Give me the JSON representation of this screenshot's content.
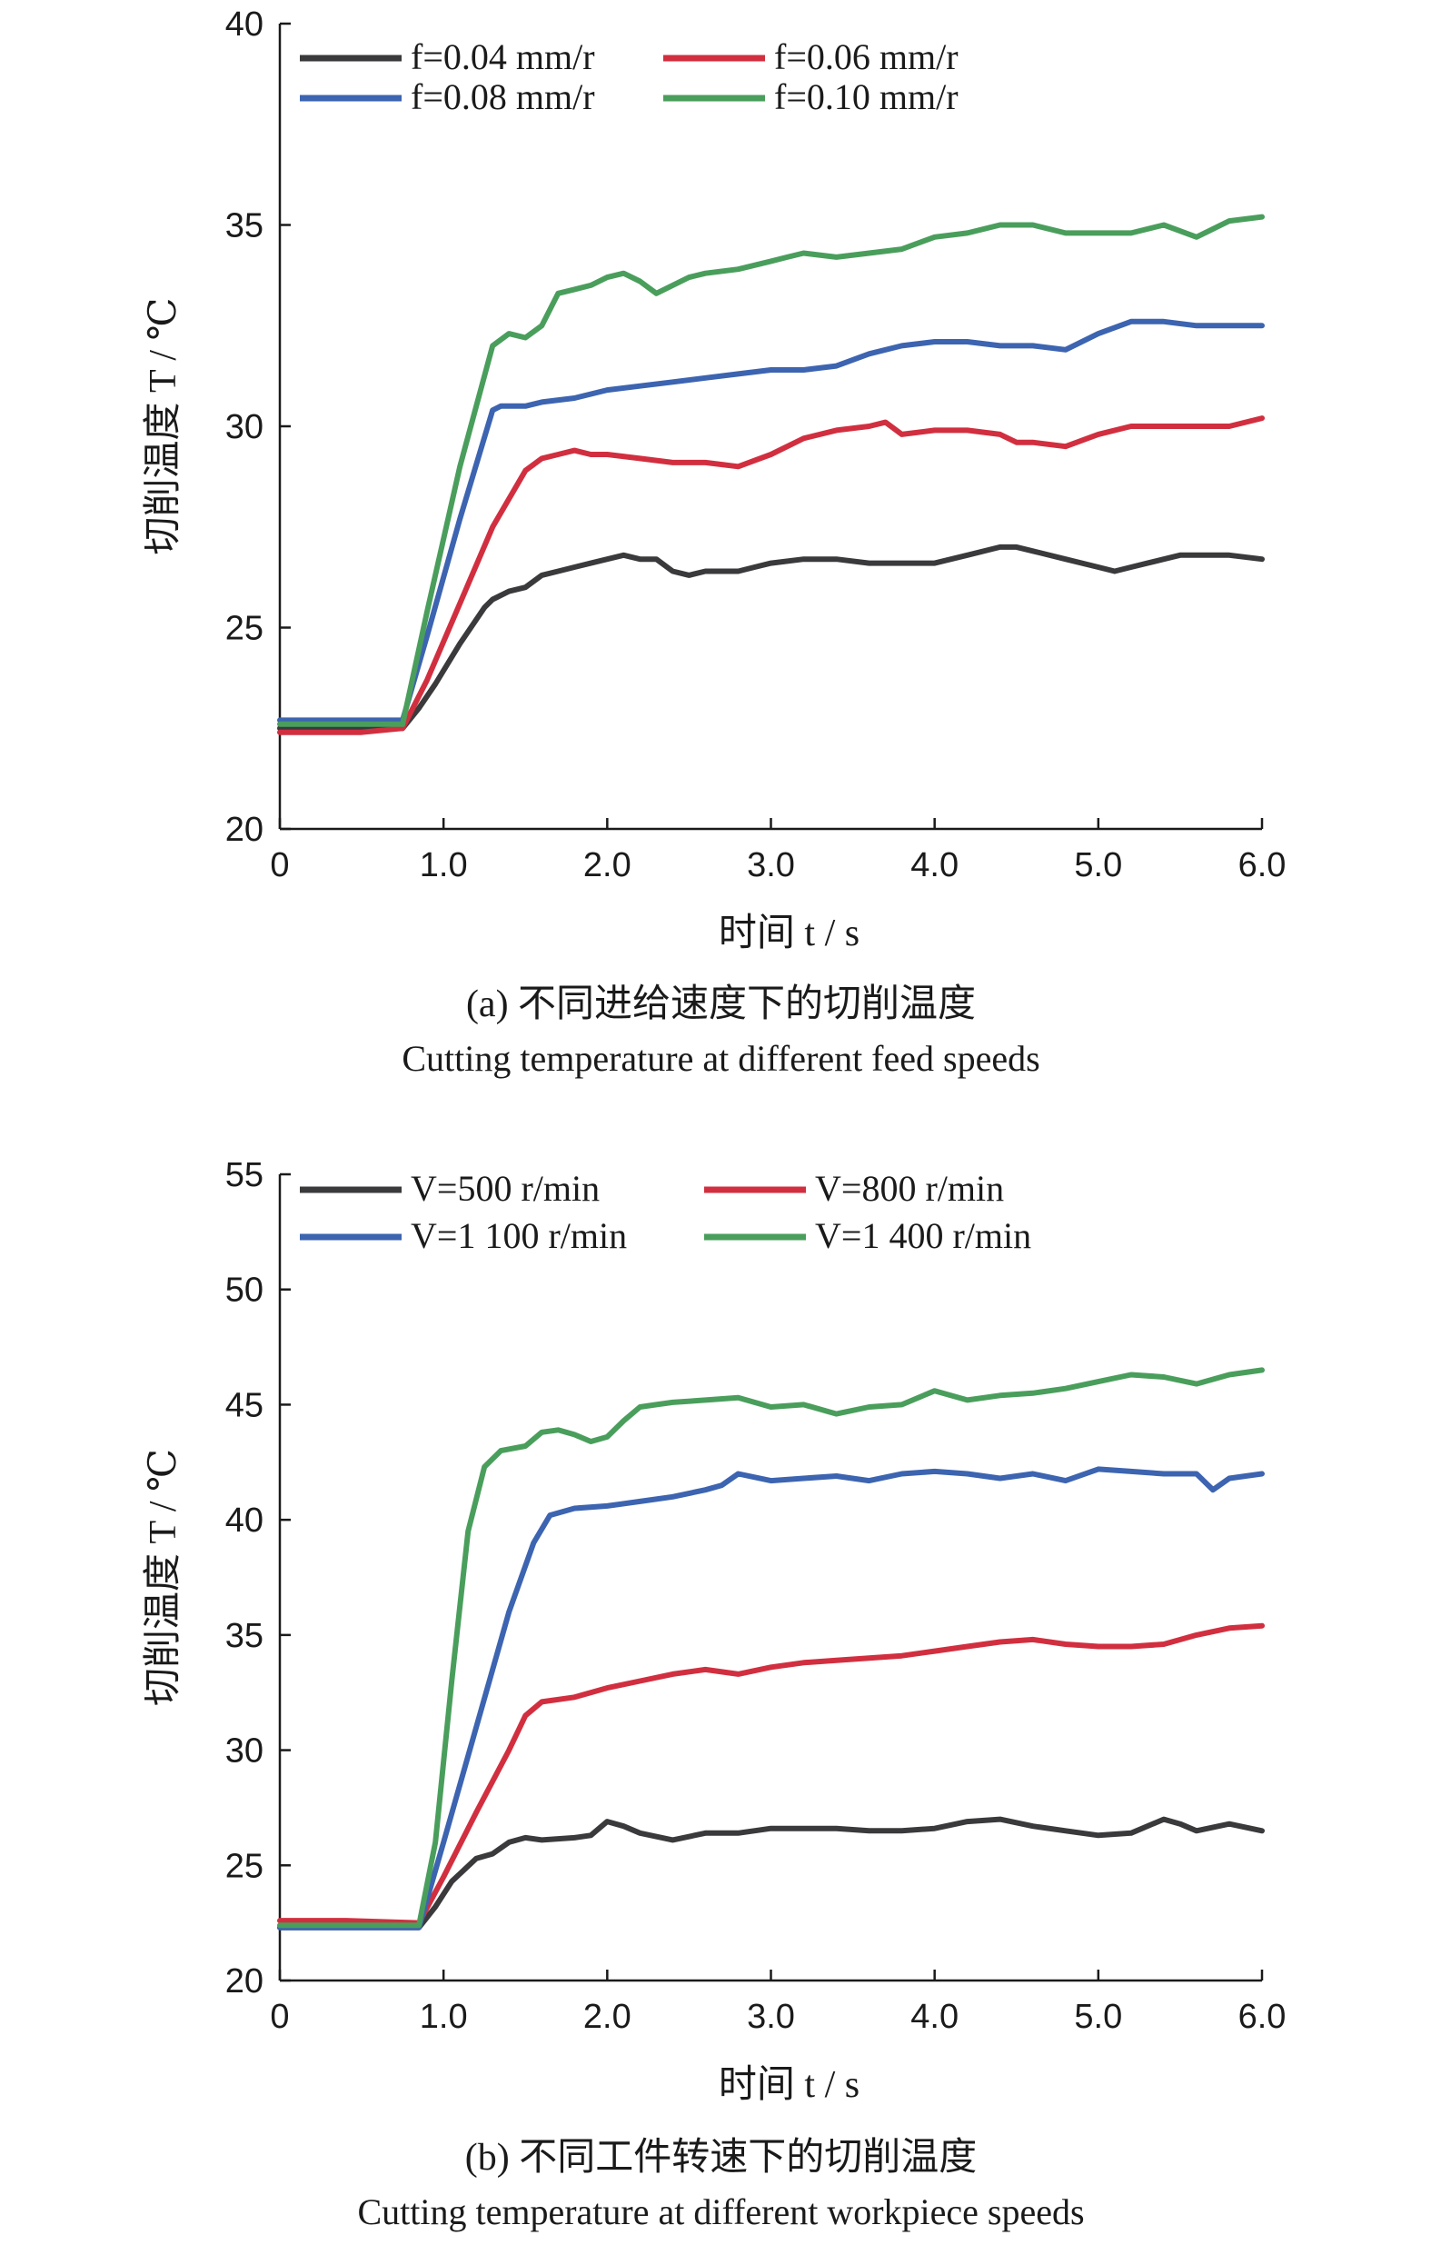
{
  "chart_data": [
    {
      "type": "line",
      "caption_cn": "(a) 不同进给速度下的切削温度",
      "caption_en": "Cutting temperature at different feed speeds",
      "xlabel": "时间 t / s",
      "ylabel": "切削温度 T / ℃",
      "xlim": [
        0,
        6.0
      ],
      "ylim": [
        20,
        40
      ],
      "xticks": [
        "0",
        "1.0",
        "2.0",
        "3.0",
        "4.0",
        "5.0",
        "6.0"
      ],
      "yticks": [
        "20",
        "25",
        "30",
        "35",
        "40"
      ],
      "legend": "top-left",
      "grid": false,
      "series": [
        {
          "name": "f=0.04 mm/r",
          "color": "#3a3a3c",
          "x": [
            0,
            0.3,
            0.5,
            0.75,
            0.85,
            0.95,
            1.1,
            1.25,
            1.3,
            1.4,
            1.5,
            1.6,
            1.7,
            1.8,
            1.9,
            2.0,
            2.1,
            2.2,
            2.3,
            2.4,
            2.5,
            2.6,
            2.7,
            2.8,
            2.9,
            3.0,
            3.2,
            3.4,
            3.6,
            3.8,
            4.0,
            4.2,
            4.4,
            4.5,
            4.6,
            4.8,
            5.0,
            5.1,
            5.2,
            5.3,
            5.4,
            5.5,
            5.6,
            5.8,
            6.0
          ],
          "y": [
            22.5,
            22.5,
            22.5,
            22.5,
            23.0,
            23.6,
            24.6,
            25.5,
            25.7,
            25.9,
            26.0,
            26.3,
            26.4,
            26.5,
            26.6,
            26.7,
            26.8,
            26.7,
            26.7,
            26.4,
            26.3,
            26.4,
            26.4,
            26.4,
            26.5,
            26.6,
            26.7,
            26.7,
            26.6,
            26.6,
            26.6,
            26.8,
            27.0,
            27.0,
            26.9,
            26.7,
            26.5,
            26.4,
            26.5,
            26.6,
            26.7,
            26.8,
            26.8,
            26.8,
            26.7
          ]
        },
        {
          "name": "f=0.06 mm/r",
          "color": "#d12f3f",
          "x": [
            0,
            0.3,
            0.5,
            0.75,
            0.9,
            1.1,
            1.3,
            1.5,
            1.6,
            1.7,
            1.8,
            1.9,
            2.0,
            2.2,
            2.4,
            2.6,
            2.8,
            3.0,
            3.2,
            3.4,
            3.6,
            3.7,
            3.8,
            4.0,
            4.2,
            4.4,
            4.5,
            4.6,
            4.8,
            5.0,
            5.2,
            5.4,
            5.6,
            5.8,
            6.0
          ],
          "y": [
            22.4,
            22.4,
            22.4,
            22.5,
            23.7,
            25.6,
            27.5,
            28.9,
            29.2,
            29.3,
            29.4,
            29.3,
            29.3,
            29.2,
            29.1,
            29.1,
            29.0,
            29.3,
            29.7,
            29.9,
            30.0,
            30.1,
            29.8,
            29.9,
            29.9,
            29.8,
            29.6,
            29.6,
            29.5,
            29.8,
            30.0,
            30.0,
            30.0,
            30.0,
            30.2
          ]
        },
        {
          "name": "f=0.08 mm/r",
          "color": "#3c64b0",
          "x": [
            0,
            0.3,
            0.5,
            0.75,
            0.9,
            1.1,
            1.3,
            1.35,
            1.5,
            1.6,
            1.8,
            2.0,
            2.2,
            2.4,
            2.6,
            2.8,
            3.0,
            3.2,
            3.4,
            3.6,
            3.8,
            4.0,
            4.2,
            4.4,
            4.6,
            4.8,
            5.0,
            5.2,
            5.4,
            5.6,
            5.8,
            6.0
          ],
          "y": [
            22.7,
            22.7,
            22.7,
            22.7,
            24.8,
            27.7,
            30.4,
            30.5,
            30.5,
            30.6,
            30.7,
            30.9,
            31.0,
            31.1,
            31.2,
            31.3,
            31.4,
            31.4,
            31.5,
            31.8,
            32.0,
            32.1,
            32.1,
            32.0,
            32.0,
            31.9,
            32.3,
            32.6,
            32.6,
            32.5,
            32.5,
            32.5
          ]
        },
        {
          "name": "f=0.10 mm/r",
          "color": "#4a9e5c",
          "x": [
            0,
            0.3,
            0.5,
            0.75,
            0.9,
            1.1,
            1.3,
            1.4,
            1.5,
            1.6,
            1.7,
            1.8,
            1.9,
            2.0,
            2.1,
            2.2,
            2.3,
            2.4,
            2.5,
            2.6,
            2.8,
            3.0,
            3.1,
            3.2,
            3.4,
            3.6,
            3.8,
            4.0,
            4.2,
            4.4,
            4.6,
            4.8,
            5.0,
            5.2,
            5.4,
            5.6,
            5.8,
            6.0
          ],
          "y": [
            22.6,
            22.6,
            22.6,
            22.6,
            25.4,
            29.0,
            32.0,
            32.3,
            32.2,
            32.5,
            33.3,
            33.4,
            33.5,
            33.7,
            33.8,
            33.6,
            33.3,
            33.5,
            33.7,
            33.8,
            33.9,
            34.1,
            34.2,
            34.3,
            34.2,
            34.3,
            34.4,
            34.7,
            34.8,
            35.0,
            35.0,
            34.8,
            34.8,
            34.8,
            35.0,
            34.7,
            35.1,
            35.2
          ]
        }
      ]
    },
    {
      "type": "line",
      "caption_cn": "(b) 不同工件转速下的切削温度",
      "caption_en": "Cutting temperature at different workpiece speeds",
      "xlabel": "时间 t / s",
      "ylabel": "切削温度 T / ℃",
      "xlim": [
        0,
        6.0
      ],
      "ylim": [
        20,
        55
      ],
      "xticks": [
        "0",
        "1.0",
        "2.0",
        "3.0",
        "4.0",
        "5.0",
        "6.0"
      ],
      "yticks": [
        "20",
        "25",
        "30",
        "35",
        "40",
        "45",
        "50",
        "55"
      ],
      "legend": "top-left",
      "grid": false,
      "series": [
        {
          "name": "V=500 r/min",
          "color": "#3a3a3c",
          "x": [
            0,
            0.4,
            0.85,
            0.95,
            1.05,
            1.2,
            1.3,
            1.4,
            1.5,
            1.6,
            1.8,
            1.9,
            2.0,
            2.1,
            2.2,
            2.4,
            2.6,
            2.8,
            3.0,
            3.2,
            3.4,
            3.6,
            3.8,
            4.0,
            4.2,
            4.4,
            4.6,
            4.8,
            5.0,
            5.2,
            5.4,
            5.5,
            5.6,
            5.8,
            6.0
          ],
          "y": [
            22.3,
            22.3,
            22.3,
            23.2,
            24.3,
            25.3,
            25.5,
            26.0,
            26.2,
            26.1,
            26.2,
            26.3,
            26.9,
            26.7,
            26.4,
            26.1,
            26.4,
            26.4,
            26.6,
            26.6,
            26.6,
            26.5,
            26.5,
            26.6,
            26.9,
            27.0,
            26.7,
            26.5,
            26.3,
            26.4,
            27.0,
            26.8,
            26.5,
            26.8,
            26.5
          ]
        },
        {
          "name": "V=800 r/min",
          "color": "#d12f3f",
          "x": [
            0,
            0.4,
            0.85,
            1.0,
            1.2,
            1.4,
            1.5,
            1.6,
            1.8,
            2.0,
            2.2,
            2.4,
            2.6,
            2.8,
            3.0,
            3.2,
            3.4,
            3.6,
            3.8,
            4.0,
            4.2,
            4.4,
            4.6,
            4.8,
            5.0,
            5.2,
            5.4,
            5.6,
            5.8,
            6.0
          ],
          "y": [
            22.6,
            22.6,
            22.5,
            24.5,
            27.3,
            30.0,
            31.5,
            32.1,
            32.3,
            32.7,
            33.0,
            33.3,
            33.5,
            33.3,
            33.6,
            33.8,
            33.9,
            34.0,
            34.1,
            34.3,
            34.5,
            34.7,
            34.8,
            34.6,
            34.5,
            34.5,
            34.6,
            35.0,
            35.3,
            35.4
          ]
        },
        {
          "name": "V=1 100 r/min",
          "color": "#3c64b0",
          "x": [
            0,
            0.4,
            0.85,
            1.0,
            1.2,
            1.4,
            1.55,
            1.65,
            1.8,
            2.0,
            2.2,
            2.4,
            2.6,
            2.7,
            2.8,
            3.0,
            3.2,
            3.4,
            3.6,
            3.8,
            4.0,
            4.2,
            4.4,
            4.6,
            4.8,
            5.0,
            5.2,
            5.4,
            5.6,
            5.7,
            5.8,
            6.0
          ],
          "y": [
            22.3,
            22.3,
            22.3,
            26.0,
            31.0,
            36.0,
            39.0,
            40.2,
            40.5,
            40.6,
            40.8,
            41.0,
            41.3,
            41.5,
            42.0,
            41.7,
            41.8,
            41.9,
            41.7,
            42.0,
            42.1,
            42.0,
            41.8,
            42.0,
            41.7,
            42.2,
            42.1,
            42.0,
            42.0,
            41.3,
            41.8,
            42.0
          ]
        },
        {
          "name": "V=1 400 r/min",
          "color": "#4a9e5c",
          "x": [
            0,
            0.4,
            0.85,
            0.95,
            1.05,
            1.15,
            1.25,
            1.35,
            1.5,
            1.6,
            1.7,
            1.8,
            1.9,
            2.0,
            2.1,
            2.2,
            2.3,
            2.4,
            2.6,
            2.8,
            3.0,
            3.2,
            3.4,
            3.6,
            3.8,
            4.0,
            4.2,
            4.4,
            4.6,
            4.8,
            5.0,
            5.2,
            5.4,
            5.6,
            5.8,
            6.0
          ],
          "y": [
            22.4,
            22.4,
            22.4,
            26.0,
            33.0,
            39.5,
            42.3,
            43.0,
            43.2,
            43.8,
            43.9,
            43.7,
            43.4,
            43.6,
            44.3,
            44.9,
            45.0,
            45.1,
            45.2,
            45.3,
            44.9,
            45.0,
            44.6,
            44.9,
            45.0,
            45.6,
            45.2,
            45.4,
            45.5,
            45.7,
            46.0,
            46.3,
            46.2,
            45.9,
            46.3,
            46.5
          ]
        }
      ]
    }
  ]
}
